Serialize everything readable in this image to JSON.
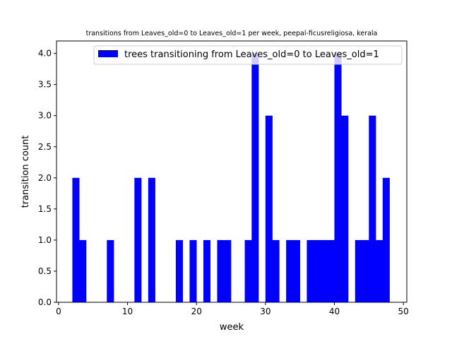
{
  "chart_data": {
    "type": "bar",
    "title": "transitions from Leaves_old=0 to Leaves_old=1 per week, peepal-ficusreligiosa, kerala",
    "xlabel": "week",
    "ylabel": "transition count",
    "xlim": [
      -0.3,
      50.5
    ],
    "ylim": [
      0,
      4.2
    ],
    "xticks": [
      0,
      10,
      20,
      30,
      40,
      50
    ],
    "yticks": [
      0.0,
      0.5,
      1.0,
      1.5,
      2.0,
      2.5,
      3.0,
      3.5,
      4.0
    ],
    "ytick_labels": [
      "0.0",
      "0.5",
      "1.0",
      "1.5",
      "2.0",
      "2.5",
      "3.0",
      "3.5",
      "4.0"
    ],
    "bar_width": 1,
    "color": "#0000ff",
    "legend_position": "top-right",
    "series": [
      {
        "name": "trees transitioning from Leaves_old=0 to Leaves_old=1",
        "x": [
          2,
          3,
          7,
          11,
          13,
          17,
          19,
          21,
          23,
          24,
          27,
          28,
          30,
          31,
          33,
          34,
          36,
          37,
          38,
          39,
          40,
          41,
          43,
          44,
          45,
          46,
          47
        ],
        "values": [
          2,
          1,
          1,
          2,
          2,
          1,
          1,
          1,
          1,
          1,
          1,
          4,
          3,
          1,
          1,
          1,
          1,
          1,
          1,
          1,
          4,
          3,
          1,
          1,
          3,
          1,
          2
        ]
      }
    ]
  }
}
